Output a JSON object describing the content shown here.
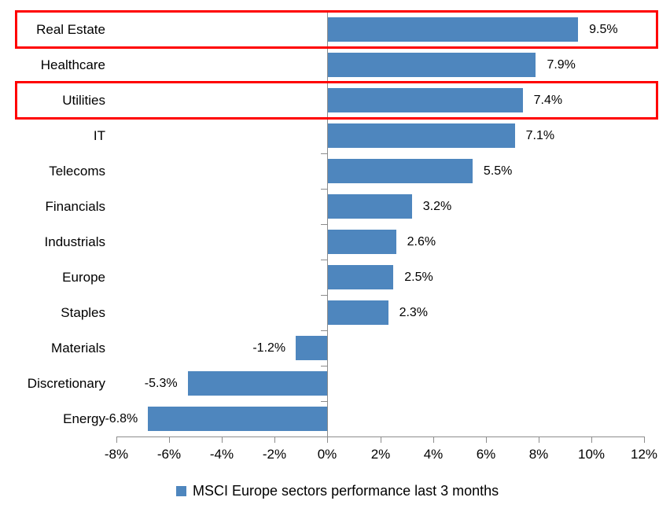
{
  "chart_data": {
    "type": "bar",
    "orientation": "horizontal",
    "title": "",
    "categories": [
      "Real Estate",
      "Healthcare",
      "Utilities",
      "IT",
      "Telecoms",
      "Financials",
      "Industrials",
      "Europe",
      "Staples",
      "Materials",
      "Discretionary",
      "Energy"
    ],
    "values": [
      9.5,
      7.9,
      7.4,
      7.1,
      5.5,
      3.2,
      2.6,
      2.5,
      2.3,
      -1.2,
      -5.3,
      -6.8
    ],
    "data_labels": [
      "9.5%",
      "7.9%",
      "7.4%",
      "7.1%",
      "5.5%",
      "3.2%",
      "2.6%",
      "2.5%",
      "2.3%",
      "-1.2%",
      "-5.3%",
      "-6.8%"
    ],
    "xlim": [
      -8,
      12
    ],
    "x_tick_step": 2,
    "x_tick_labels": [
      "-8%",
      "-6%",
      "-4%",
      "-2%",
      "0%",
      "2%",
      "4%",
      "6%",
      "8%",
      "10%",
      "12%"
    ],
    "grid": false,
    "legend_position": "bottom",
    "legend_label": "MSCI Europe sectors performance last 3 months",
    "bar_color": "#4E86BE",
    "axis_color": "#8C8C8C",
    "text_color": "#000000",
    "highlight_color": "#FF0000",
    "highlighted_categories": [
      "Real Estate",
      "Utilities"
    ]
  }
}
